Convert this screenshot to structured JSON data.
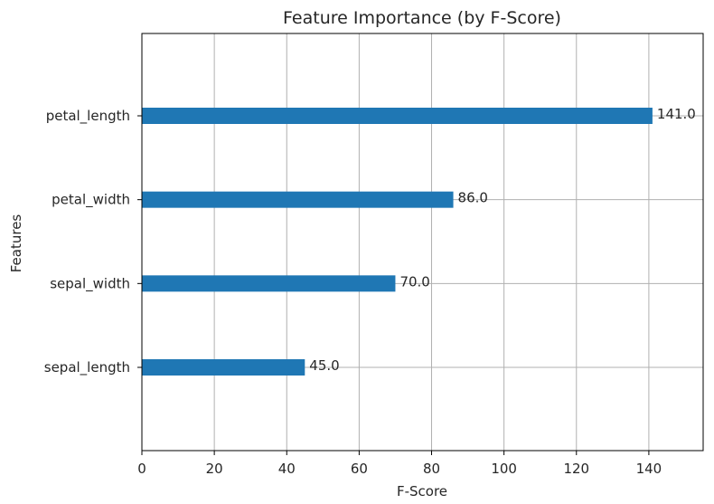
{
  "chart_data": {
    "type": "bar",
    "orientation": "horizontal",
    "title": "Feature Importance (by F-Score)",
    "xlabel": "F-Score",
    "ylabel": "Features",
    "categories": [
      "petal_length",
      "petal_width",
      "sepal_width",
      "sepal_length"
    ],
    "values": [
      141.0,
      86.0,
      70.0,
      45.0
    ],
    "value_labels": [
      "141.0",
      "86.0",
      "70.0",
      "45.0"
    ],
    "xlim": [
      0,
      155
    ],
    "xticks": [
      0,
      20,
      40,
      60,
      80,
      100,
      120,
      140
    ],
    "xtick_labels": [
      "0",
      "20",
      "40",
      "60",
      "80",
      "100",
      "120",
      "140"
    ],
    "grid": true,
    "bar_color": "#1f77b4"
  }
}
